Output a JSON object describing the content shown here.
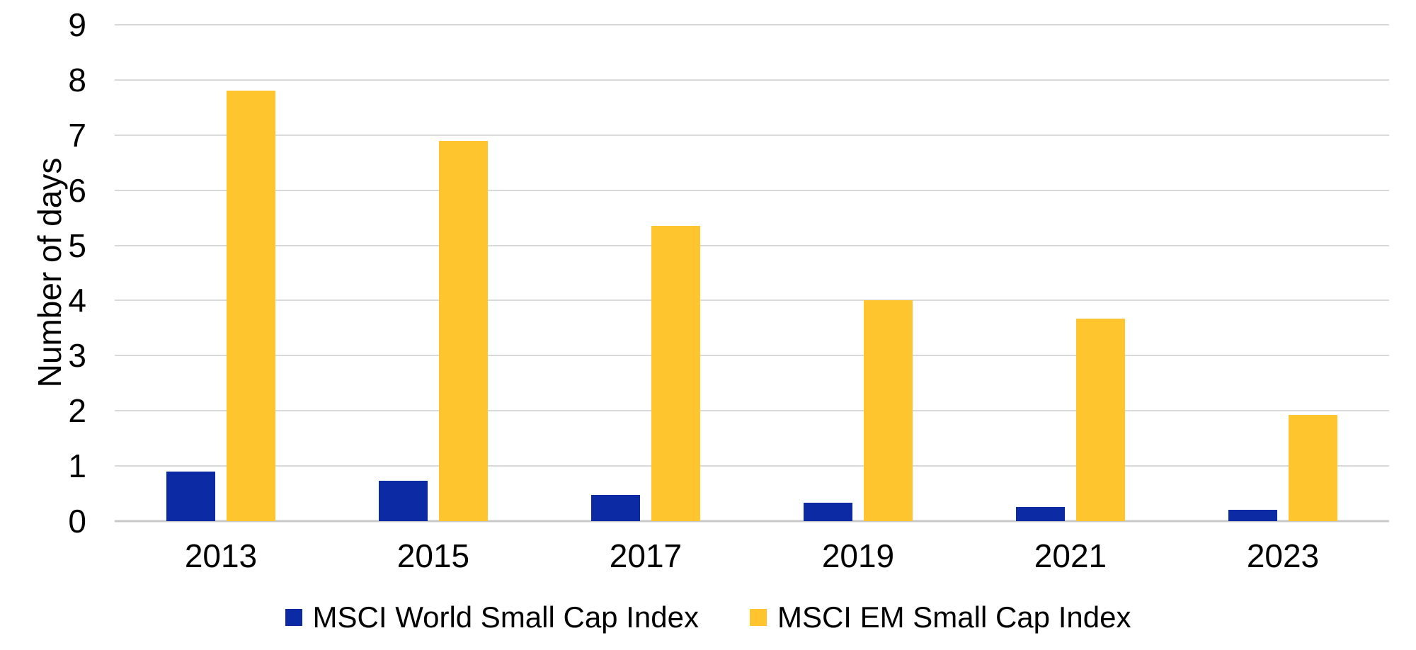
{
  "chart_data": {
    "type": "bar",
    "title": "",
    "categories": [
      "2013",
      "2015",
      "2017",
      "2019",
      "2021",
      "2023"
    ],
    "series": [
      {
        "name": "MSCI World Small Cap Index",
        "color": "#0B2AA3",
        "values": [
          0.9,
          0.73,
          0.48,
          0.34,
          0.26,
          0.2
        ]
      },
      {
        "name": "MSCI EM Small Cap Index",
        "color": "#FEC52E",
        "values": [
          7.8,
          6.9,
          5.35,
          4.0,
          3.67,
          1.93
        ]
      }
    ],
    "xlabel": "",
    "ylabel": "Number of days",
    "ylim": [
      0,
      9
    ],
    "yticks": [
      0,
      1,
      2,
      3,
      4,
      5,
      6,
      7,
      8,
      9
    ],
    "grid": true,
    "legend_position": "bottom",
    "colors": {
      "grid": "#D9D9D9",
      "axis_line": "#C8C8C8",
      "text": "#000000",
      "background": "#FFFFFF"
    }
  }
}
